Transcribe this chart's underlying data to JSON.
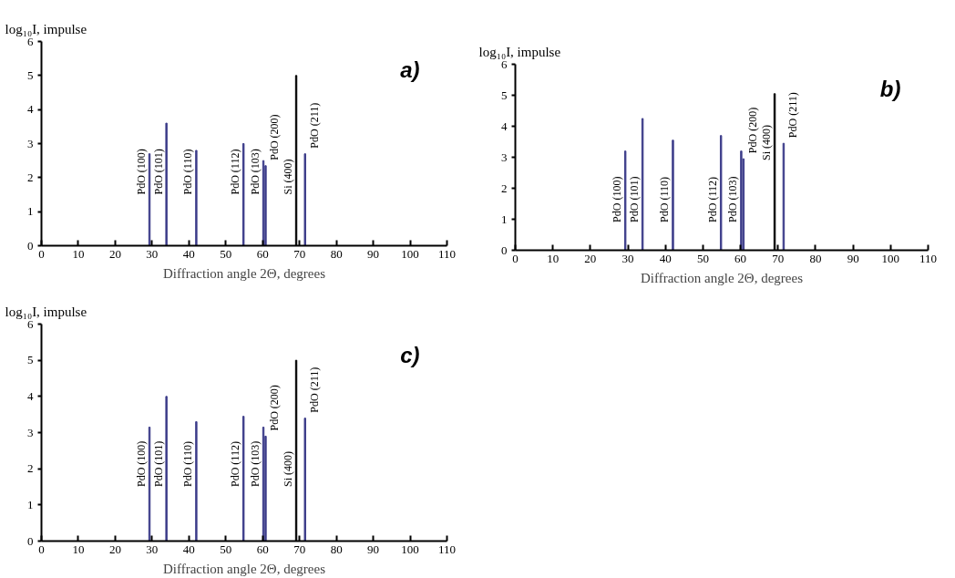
{
  "chart_data": [
    {
      "type": "bar",
      "x": [
        29.3,
        33.9,
        42.0,
        54.8,
        60.2,
        60.8,
        69.1,
        71.5
      ],
      "values": [
        2.7,
        3.6,
        2.8,
        3.0,
        2.5,
        2.35,
        5.0,
        2.7
      ],
      "colors": [
        "#3d3d8a",
        "#3d3d8a",
        "#3d3d8a",
        "#3d3d8a",
        "#3d3d8a",
        "#3d3d8a",
        "#000000",
        "#3d3d8a"
      ],
      "xlim": [
        0,
        110
      ],
      "ylim": [
        0,
        6
      ],
      "xticks": [
        0,
        10,
        20,
        30,
        40,
        50,
        60,
        70,
        80,
        90,
        100,
        110
      ],
      "yticks": [
        0,
        1,
        2,
        3,
        4,
        5,
        6
      ],
      "grid": false,
      "xlabel": "Diffraction angle 2Θ, degrees",
      "ylabel": "log₁₀I, impulse",
      "annotations": [
        "a)",
        {
          "text": "PdO (100)",
          "x": 29.3,
          "y": 1.5
        },
        {
          "text": "PdO (101)",
          "x": 33.9,
          "y": 1.5
        },
        {
          "text": "PdO (110)",
          "x": 42.0,
          "y": 1.5
        },
        {
          "text": "PdO (112)",
          "x": 54.8,
          "y": 1.5
        },
        {
          "text": "PdO (103)",
          "x": 60.2,
          "y": 1.5
        },
        {
          "text": "PdO (200)",
          "x": 60.8,
          "y": 2.35
        },
        {
          "text": "Si (400)",
          "x": 69.1,
          "y": 1.5
        },
        {
          "text": "PdO (211)",
          "x": 71.5,
          "y": 2.7
        }
      ]
    },
    {
      "type": "bar",
      "x": [
        29.3,
        33.9,
        42.0,
        54.8,
        60.2,
        60.8,
        69.1,
        71.5
      ],
      "values": [
        3.2,
        4.25,
        3.55,
        3.7,
        3.2,
        2.95,
        5.05,
        3.45
      ],
      "colors": [
        "#3d3d8a",
        "#3d3d8a",
        "#3d3d8a",
        "#3d3d8a",
        "#3d3d8a",
        "#3d3d8a",
        "#000000",
        "#3d3d8a"
      ],
      "xlim": [
        0,
        110
      ],
      "ylim": [
        0,
        6
      ],
      "xticks": [
        0,
        10,
        20,
        30,
        40,
        50,
        60,
        70,
        80,
        90,
        100,
        110
      ],
      "yticks": [
        0,
        1,
        2,
        3,
        4,
        5,
        6
      ],
      "grid": false,
      "xlabel": "Diffraction angle 2Θ, degrees",
      "ylabel": "log₁₀I, impulse",
      "annotations": [
        "b)",
        {
          "text": "PdO (100)",
          "x": 29.3,
          "y": 0.9
        },
        {
          "text": "PdO (101)",
          "x": 33.9,
          "y": 0.9
        },
        {
          "text": "PdO (110)",
          "x": 42.0,
          "y": 0.9
        },
        {
          "text": "PdO (112)",
          "x": 54.8,
          "y": 0.9
        },
        {
          "text": "PdO (103)",
          "x": 60.2,
          "y": 0.9
        },
        {
          "text": "PdO (200)",
          "x": 60.8,
          "y": 2.95
        },
        {
          "text": "Si (400)",
          "x": 69.1,
          "y": 2.9
        },
        {
          "text": "PdO (211)",
          "x": 71.5,
          "y": 3.45
        }
      ]
    },
    {
      "type": "bar",
      "x": [
        29.3,
        33.9,
        42.0,
        54.8,
        60.2,
        60.8,
        69.1,
        71.5
      ],
      "values": [
        3.15,
        4.0,
        3.3,
        3.45,
        3.15,
        2.9,
        5.0,
        3.4
      ],
      "colors": [
        "#3d3d8a",
        "#3d3d8a",
        "#3d3d8a",
        "#3d3d8a",
        "#3d3d8a",
        "#3d3d8a",
        "#000000",
        "#3d3d8a"
      ],
      "xlim": [
        0,
        110
      ],
      "ylim": [
        0,
        6
      ],
      "xticks": [
        0,
        10,
        20,
        30,
        40,
        50,
        60,
        70,
        80,
        90,
        100,
        110
      ],
      "yticks": [
        0,
        1,
        2,
        3,
        4,
        5,
        6
      ],
      "grid": false,
      "xlabel": "Diffraction angle 2Θ, degrees",
      "ylabel": "log₁₀I, impulse",
      "annotations": [
        "c)",
        {
          "text": "PdO (100)",
          "x": 29.3,
          "y": 1.5
        },
        {
          "text": "PdO (101)",
          "x": 33.9,
          "y": 1.5
        },
        {
          "text": "PdO (110)",
          "x": 42.0,
          "y": 1.5
        },
        {
          "text": "PdO (112)",
          "x": 54.8,
          "y": 1.5
        },
        {
          "text": "PdO (103)",
          "x": 60.2,
          "y": 1.5
        },
        {
          "text": "PdO (200)",
          "x": 60.8,
          "y": 2.9
        },
        {
          "text": "Si (400)",
          "x": 69.1,
          "y": 1.5
        },
        {
          "text": "PdO (211)",
          "x": 71.5,
          "y": 3.4
        }
      ]
    }
  ]
}
